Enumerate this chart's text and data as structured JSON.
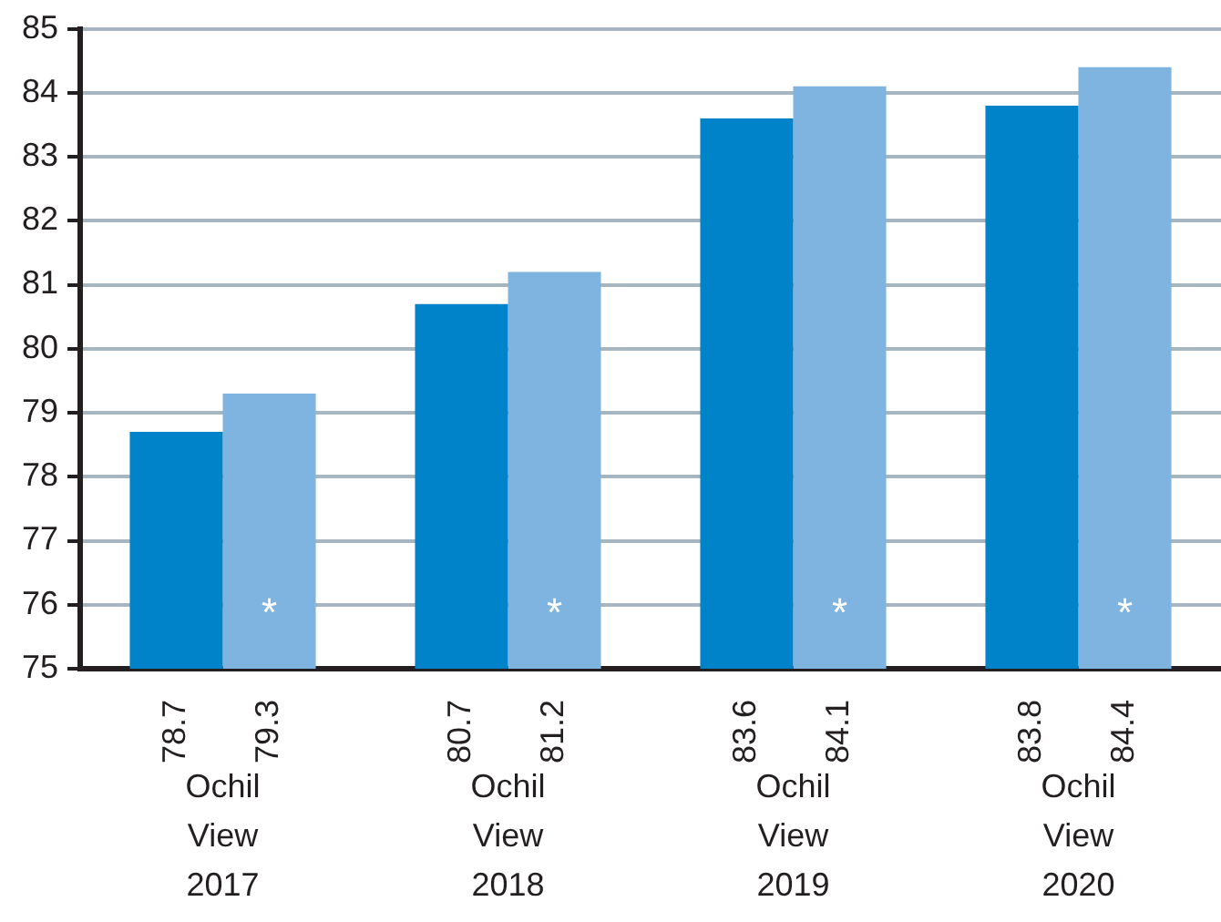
{
  "chart_data": {
    "type": "bar",
    "categories": [
      "Ochil View 2017",
      "Ochil View 2018",
      "Ochil View 2019",
      "Ochil View 2020"
    ],
    "series": [
      {
        "color": "#0083c9",
        "values": [
          78.7,
          80.7,
          83.6,
          83.8
        ]
      },
      {
        "color": "#7fb3e0",
        "values": [
          79.3,
          81.2,
          84.1,
          84.4
        ]
      }
    ],
    "ylim": [
      75,
      85
    ],
    "yticks": [
      75,
      76,
      77,
      78,
      79,
      80,
      81,
      82,
      83,
      84,
      85
    ],
    "grid": "y",
    "data_labels": true,
    "annotations": [
      {
        "text": "*",
        "x": "Ochil View 2017",
        "y": 76
      },
      {
        "text": "*",
        "x": "Ochil View 2018",
        "y": 76
      },
      {
        "text": "*",
        "x": "Ochil View 2019",
        "y": 76
      },
      {
        "text": "*",
        "x": "Ochil View 2020",
        "y": 76
      }
    ]
  }
}
